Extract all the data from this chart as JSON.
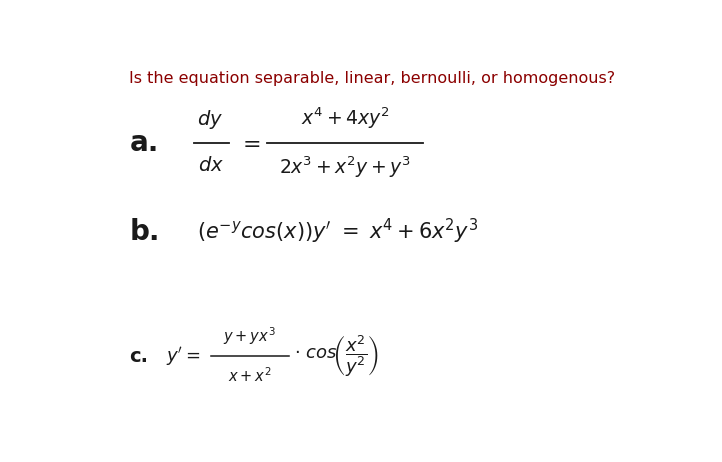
{
  "title": "Is the equation separable, linear, bernoulli, or homogenous?",
  "title_color": "#8B0000",
  "title_fontsize": 11.5,
  "background_color": "#ffffff",
  "text_color": "#1a1a1a",
  "label_a": "a.",
  "label_b": "b.",
  "label_c": "c.",
  "label_fontsize_ab": 20,
  "label_fontsize_c": 14,
  "eq_a_dy": "$dy$",
  "eq_a_dx": "$dx$",
  "eq_a_num": "$x^4 + 4xy^2$",
  "eq_a_den": "$2x^3 + x^2y +y^3$",
  "eq_b": "$(e^{-y}\\!cos(x))y' = x^4 + 6x^2y^3$",
  "eq_c_lhs": "$y' = $",
  "eq_c_num": "$y + yx^3$",
  "eq_c_den": "$x + x^2$",
  "eq_c_rhs": "$\\cdot\\ cos\\!\\left(\\dfrac{x^2}{y^2}\\right)$"
}
